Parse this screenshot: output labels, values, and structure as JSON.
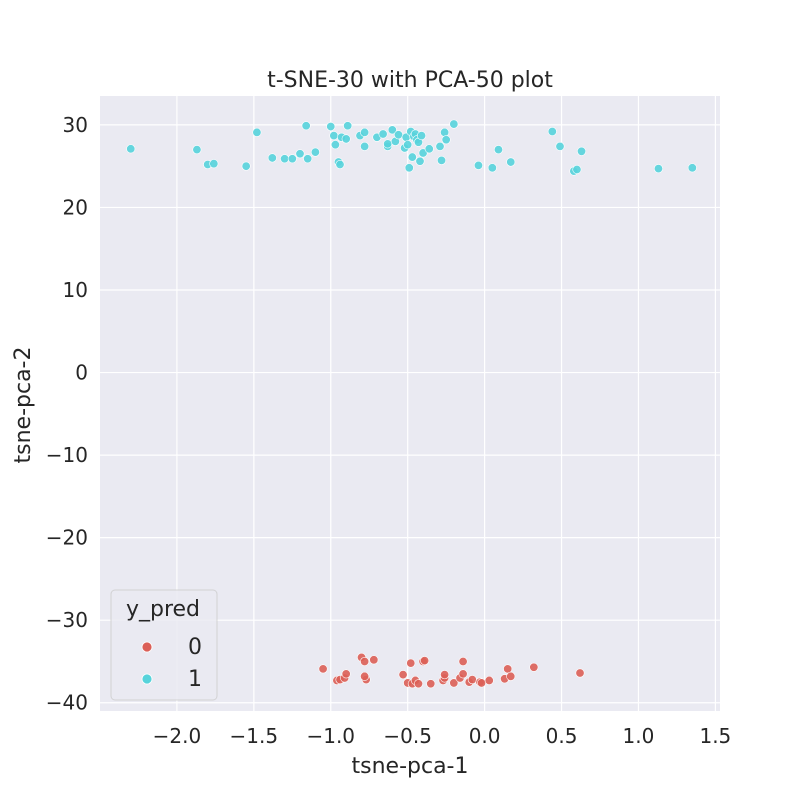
{
  "chart_data": {
    "type": "scatter",
    "title": "t-SNE-30 with PCA-50 plot",
    "xlabel": "tsne-pca-1",
    "ylabel": "tsne-pca-2",
    "xlim": [
      -2.5,
      1.53
    ],
    "ylim": [
      -41,
      33.5
    ],
    "xticks": [
      -2.0,
      -1.5,
      -1.0,
      -0.5,
      0.0,
      0.5,
      1.0,
      1.5
    ],
    "xtick_labels": [
      "−2.0",
      "−1.5",
      "−1.0",
      "−0.5",
      "0.0",
      "0.5",
      "1.0",
      "1.5"
    ],
    "yticks": [
      30,
      20,
      10,
      0,
      -10,
      -20,
      -30,
      -40
    ],
    "ytick_labels": [
      "30",
      "20",
      "10",
      "0",
      "−10",
      "−20",
      "−30",
      "−40"
    ],
    "grid": true,
    "background": "#EAEAF2",
    "legend": {
      "title": "y_pred",
      "position": "lower-left",
      "entries": [
        "0",
        "1"
      ]
    },
    "series": [
      {
        "name": "0",
        "color": "#DB5F57",
        "points": [
          [
            -1.05,
            -35.9
          ],
          [
            -0.96,
            -37.3
          ],
          [
            -0.94,
            -37.2
          ],
          [
            -0.91,
            -37.0
          ],
          [
            -0.9,
            -36.5
          ],
          [
            -0.8,
            -34.5
          ],
          [
            -0.78,
            -35.0
          ],
          [
            -0.77,
            -37.2
          ],
          [
            -0.78,
            -36.8
          ],
          [
            -0.72,
            -34.8
          ],
          [
            -0.53,
            -36.6
          ],
          [
            -0.5,
            -37.6
          ],
          [
            -0.48,
            -35.2
          ],
          [
            -0.47,
            -37.7
          ],
          [
            -0.45,
            -37.3
          ],
          [
            -0.43,
            -37.7
          ],
          [
            -0.4,
            -35.0
          ],
          [
            -0.39,
            -34.9
          ],
          [
            -0.35,
            -37.7
          ],
          [
            -0.27,
            -37.3
          ],
          [
            -0.26,
            -37.0
          ],
          [
            -0.26,
            -36.6
          ],
          [
            -0.2,
            -37.6
          ],
          [
            -0.16,
            -37.0
          ],
          [
            -0.14,
            -36.5
          ],
          [
            -0.14,
            -35.0
          ],
          [
            -0.1,
            -37.5
          ],
          [
            -0.08,
            -37.2
          ],
          [
            -0.03,
            -37.5
          ],
          [
            -0.02,
            -37.6
          ],
          [
            0.03,
            -37.3
          ],
          [
            0.13,
            -37.1
          ],
          [
            0.15,
            -35.9
          ],
          [
            0.17,
            -36.8
          ],
          [
            0.32,
            -35.7
          ],
          [
            0.62,
            -36.4
          ]
        ]
      },
      {
        "name": "1",
        "color": "#57D3DB",
        "points": [
          [
            -2.3,
            27.1
          ],
          [
            -1.87,
            27.0
          ],
          [
            -1.8,
            25.2
          ],
          [
            -1.76,
            25.3
          ],
          [
            -1.55,
            25.0
          ],
          [
            -1.48,
            29.1
          ],
          [
            -1.38,
            26.0
          ],
          [
            -1.3,
            25.9
          ],
          [
            -1.25,
            25.9
          ],
          [
            -1.2,
            26.5
          ],
          [
            -1.16,
            29.9
          ],
          [
            -1.15,
            25.9
          ],
          [
            -1.1,
            26.7
          ],
          [
            -1.0,
            29.8
          ],
          [
            -0.98,
            28.7
          ],
          [
            -0.97,
            27.6
          ],
          [
            -0.95,
            25.5
          ],
          [
            -0.94,
            25.2
          ],
          [
            -0.93,
            28.5
          ],
          [
            -0.9,
            28.3
          ],
          [
            -0.89,
            29.9
          ],
          [
            -0.81,
            28.7
          ],
          [
            -0.78,
            29.1
          ],
          [
            -0.78,
            27.4
          ],
          [
            -0.7,
            28.5
          ],
          [
            -0.66,
            28.9
          ],
          [
            -0.63,
            27.4
          ],
          [
            -0.63,
            27.7
          ],
          [
            -0.6,
            29.4
          ],
          [
            -0.58,
            28.0
          ],
          [
            -0.56,
            28.8
          ],
          [
            -0.52,
            27.2
          ],
          [
            -0.51,
            28.5
          ],
          [
            -0.5,
            27.6
          ],
          [
            -0.49,
            24.8
          ],
          [
            -0.48,
            29.2
          ],
          [
            -0.47,
            26.1
          ],
          [
            -0.46,
            28.6
          ],
          [
            -0.45,
            28.9
          ],
          [
            -0.44,
            28.2
          ],
          [
            -0.43,
            27.9
          ],
          [
            -0.42,
            25.6
          ],
          [
            -0.41,
            28.7
          ],
          [
            -0.4,
            26.6
          ],
          [
            -0.36,
            27.1
          ],
          [
            -0.29,
            27.4
          ],
          [
            -0.28,
            25.7
          ],
          [
            -0.26,
            29.1
          ],
          [
            -0.25,
            28.2
          ],
          [
            -0.2,
            30.1
          ],
          [
            -0.04,
            25.1
          ],
          [
            0.05,
            24.8
          ],
          [
            0.09,
            27.0
          ],
          [
            0.17,
            25.5
          ],
          [
            0.44,
            29.2
          ],
          [
            0.49,
            27.4
          ],
          [
            0.58,
            24.4
          ],
          [
            0.6,
            24.6
          ],
          [
            0.63,
            26.8
          ],
          [
            1.13,
            24.7
          ],
          [
            1.35,
            24.8
          ]
        ]
      }
    ]
  }
}
